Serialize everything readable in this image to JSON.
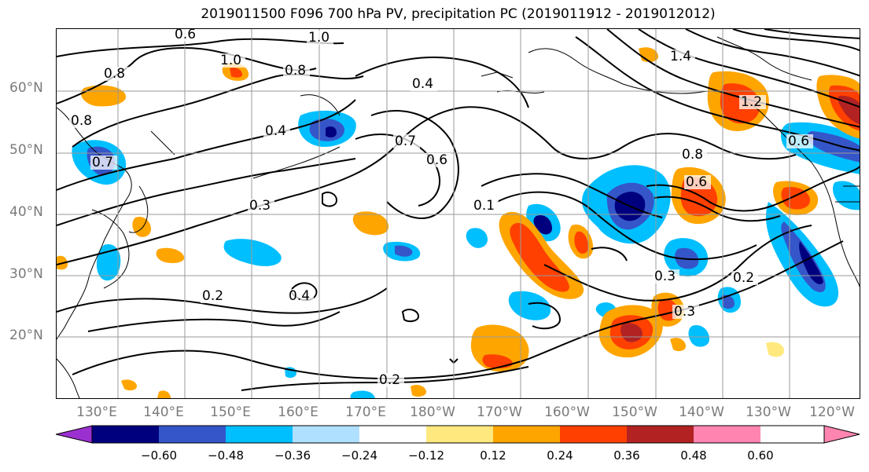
{
  "title": "2019011500 F096 700 hPa PV, precipitation PC (2019011912 - 2019012012)",
  "lat_labels": [
    "60°N",
    "50°N",
    "40°N",
    "30°N",
    "20°N"
  ],
  "lon_labels": [
    "130°E",
    "140°E",
    "150°E",
    "160°E",
    "170°E",
    "180°W",
    "170°W",
    "160°W",
    "150°W",
    "140°W",
    "130°W",
    "120°W"
  ],
  "contour_labels": [
    "0.6",
    "1.0",
    "1.0",
    "0.8",
    "0.8",
    "0.8",
    "0.4",
    "0.7",
    "0.6",
    "0.4",
    "0.3",
    "0.4",
    "0.2",
    "0.2",
    "0.1",
    "0.3",
    "0.3",
    "0.2",
    "0.8",
    "0.6",
    "1.4",
    "1.2",
    "0.6",
    "0.7"
  ],
  "colorbar": {
    "ticks": [
      "−0.60",
      "−0.48",
      "−0.36",
      "−0.24",
      "−0.12",
      "0.12",
      "0.24",
      "0.36",
      "0.48",
      "0.60"
    ],
    "colors": [
      "#9b30d0",
      "#00007f",
      "#3556c8",
      "#00bfff",
      "#b0e0ff",
      "#ffffff",
      "#ffe97f",
      "#ffa500",
      "#ff4000",
      "#b22222",
      "#ff85b0",
      "#ff85b0"
    ]
  }
}
